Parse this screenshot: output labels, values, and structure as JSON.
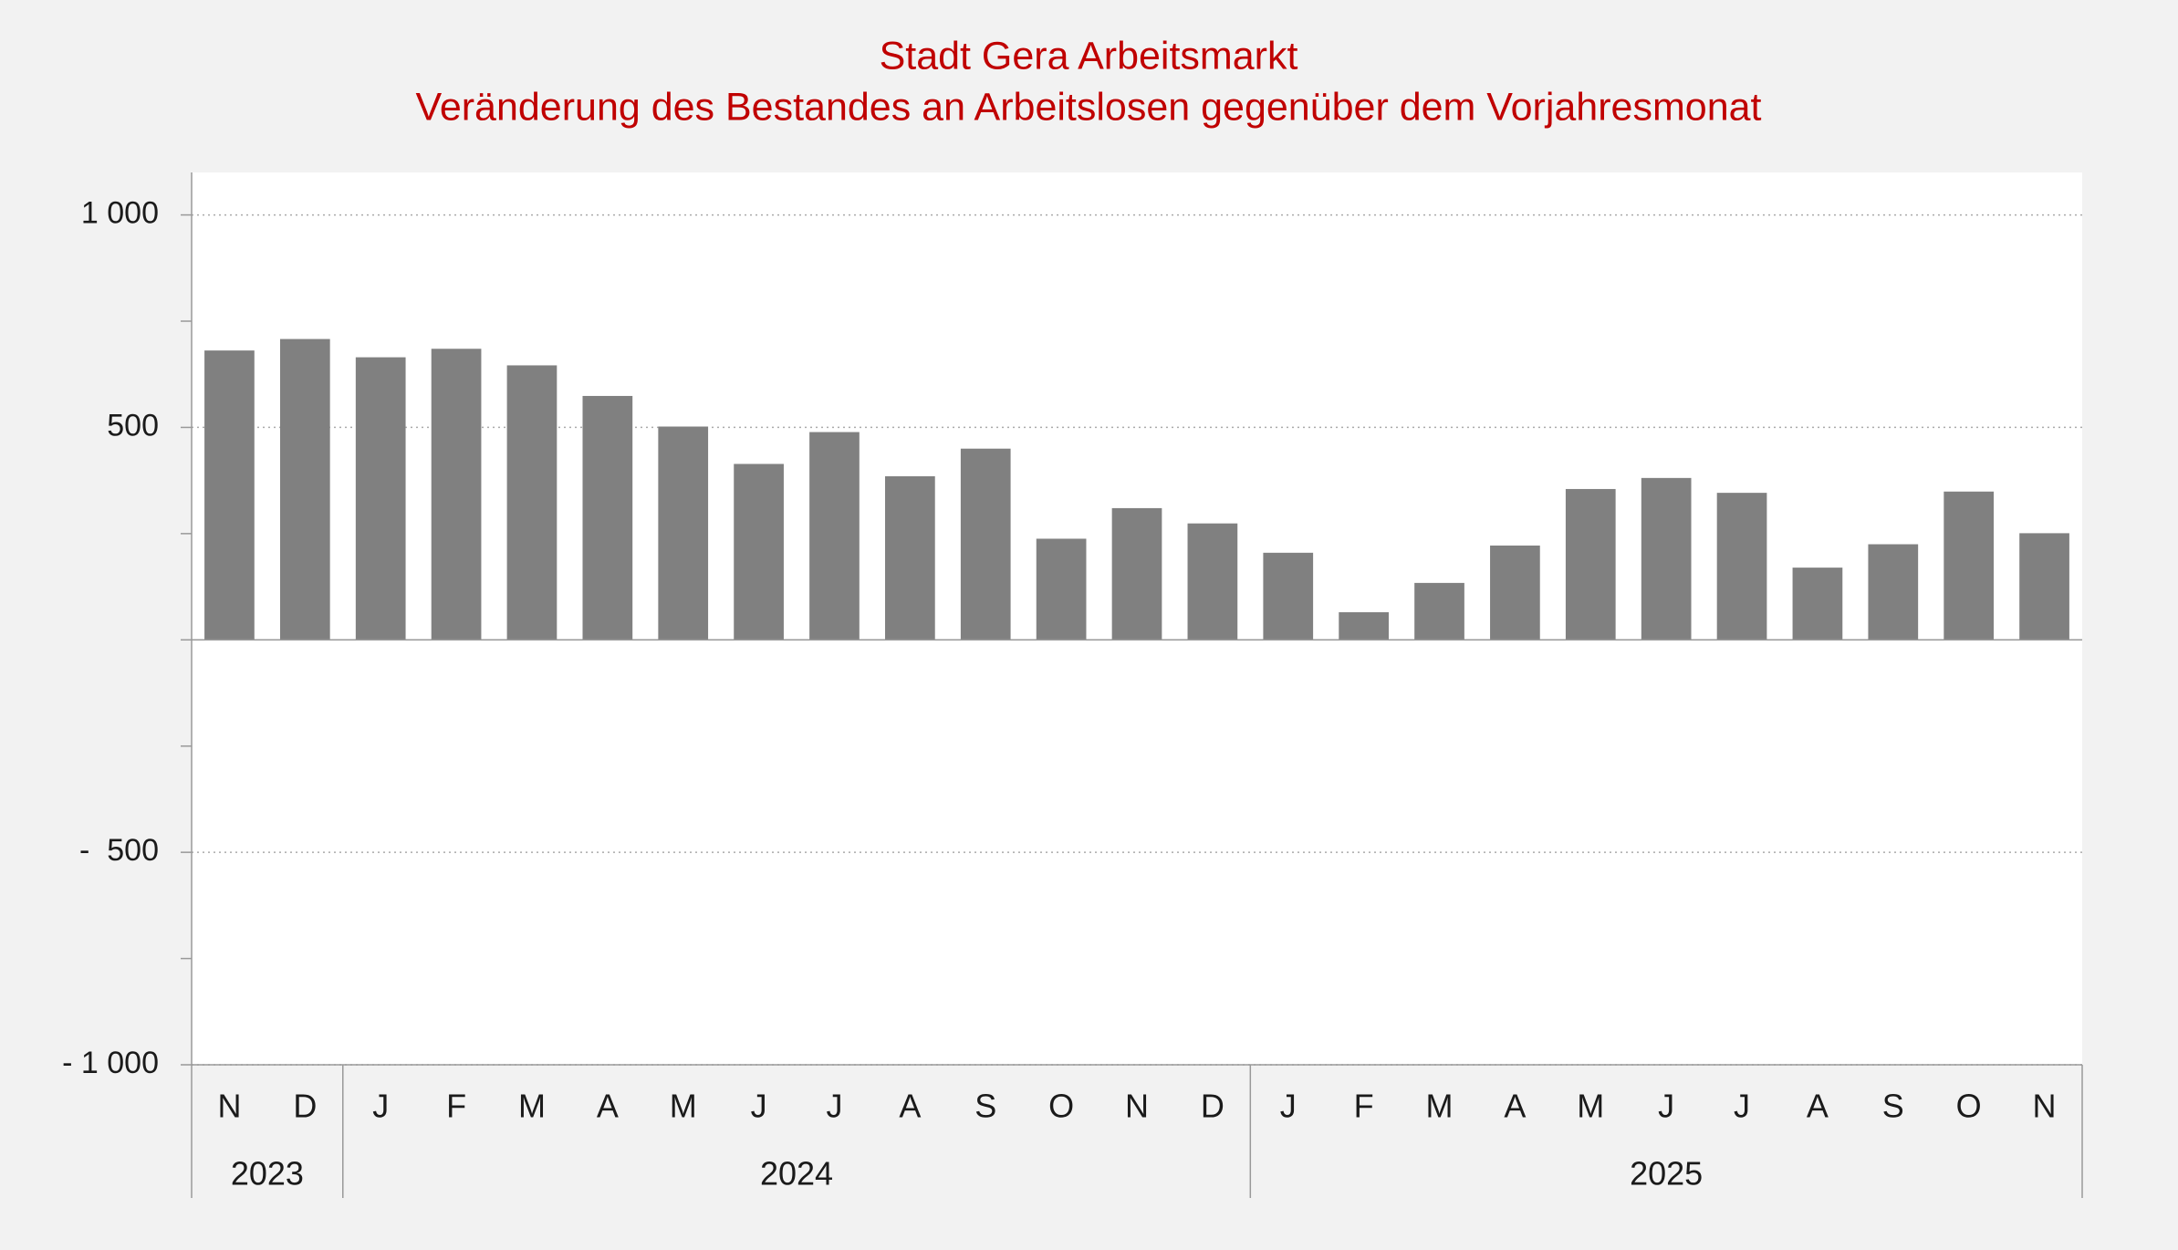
{
  "chart_data": {
    "type": "bar",
    "title": "Stadt Gera Arbeitsmarkt",
    "subtitle": "Veränderung des Bestandes an Arbeitslosen gegenüber dem Vorjahresmonat",
    "categories": [
      "N",
      "D",
      "J",
      "F",
      "M",
      "A",
      "M",
      "J",
      "J",
      "A",
      "S",
      "O",
      "N",
      "D",
      "J",
      "F",
      "M",
      "A",
      "M",
      "J",
      "J",
      "A",
      "S",
      "O",
      "N"
    ],
    "values": [
      681,
      708,
      665,
      685,
      646,
      574,
      502,
      414,
      489,
      385,
      450,
      238,
      310,
      274,
      205,
      65,
      134,
      222,
      355,
      381,
      346,
      170,
      225,
      349,
      251
    ],
    "color": "#808080",
    "year_groups": [
      {
        "label": "2023",
        "count": 2
      },
      {
        "label": "2024",
        "count": 12
      },
      {
        "label": "2025",
        "count": 11
      }
    ],
    "ylim": [
      -1000,
      1100
    ],
    "yticks": [
      {
        "value": 1000,
        "label": "1 000"
      },
      500,
      {
        "value": -500,
        "label": "-  500"
      },
      {
        "value": -1000,
        "label": "- 1 000"
      }
    ],
    "minor_yticks": [
      750,
      250,
      0,
      -250,
      -750
    ],
    "grid": true
  }
}
